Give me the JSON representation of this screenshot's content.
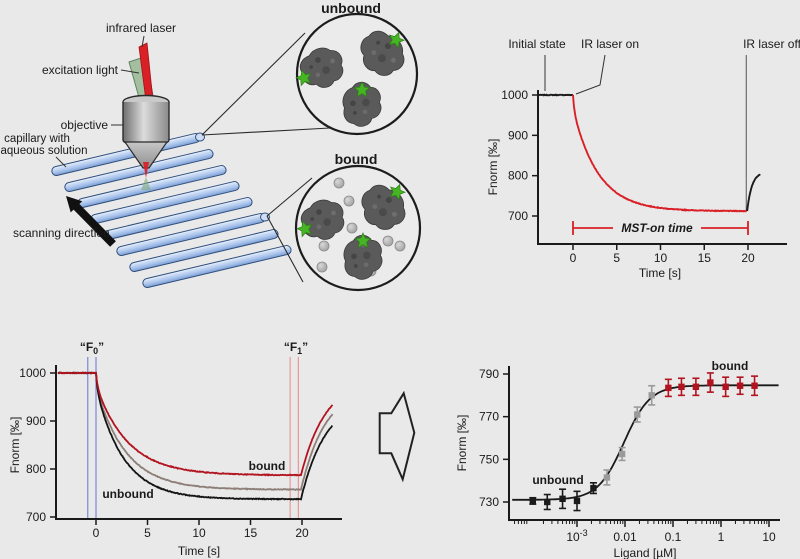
{
  "figure": {
    "background": "#e9e9e9"
  },
  "diagram": {
    "labels": {
      "infrared_laser": "infrared laser",
      "excitation_light": "excitation light",
      "objective": "objective",
      "capillary_line1": "capillary with",
      "capillary_line2": "aqueous solution",
      "scanning_direction": "scanning direction",
      "unbound_title": "unbound",
      "bound_title": "bound"
    },
    "colors": {
      "laser_red": "#d92027",
      "excitation_green": "#a4bfa0",
      "beam_shadow": "#938c7e",
      "capillary_fill": "#aac4ec",
      "capillary_stroke": "#2f4f7c",
      "protein_gray": "#5a5a5a",
      "ligand_gray": "#b0b0b0",
      "star_green": "#46b524",
      "bound_red": "#b2131f",
      "arrow_black": "#111111"
    }
  },
  "chart_data": [
    {
      "id": "mst_time_trace",
      "type": "line",
      "xlabel": "Time [s]",
      "ylabel": "Fnorm [‰]",
      "xticks": [
        0,
        5,
        10,
        15,
        20
      ],
      "yticks": [
        700,
        800,
        900,
        1000
      ],
      "xlim": [
        -4,
        24.5
      ],
      "ylim": [
        655,
        1035
      ],
      "annotations": {
        "initial_state": "Initial state",
        "laser_on": "IR laser on",
        "laser_off": "IR laser off",
        "mst_on": "MST-on time"
      },
      "accent_red": "#d92027",
      "laser_off_t": 19.8,
      "mst_window": [
        0,
        20
      ],
      "series": [
        {
          "name": "initial-fluorescence",
          "color": "#1a1a1a",
          "kind": "flat",
          "t0": -4,
          "t1": 0,
          "y": 1000
        },
        {
          "name": "thermophoresis-decay",
          "color": "#d92027",
          "kind": "decay",
          "t0": 0,
          "t1": 19.9,
          "plateau": 712,
          "amp": 288,
          "ff": 0.12,
          "tf": 0.15,
          "ts": 2.9
        },
        {
          "name": "back-diffusion-recovery",
          "color": "#1a1a1a",
          "kind": "recovery",
          "t0": 19.9,
          "t1": 21.4,
          "y_start": 712,
          "y_inf": 810,
          "tau": 0.55
        }
      ]
    },
    {
      "id": "binding_time_traces",
      "type": "line",
      "xlabel": "Time [s]",
      "ylabel": "Fnorm [‰]",
      "xticks": [
        0,
        5,
        10,
        15,
        20
      ],
      "yticks": [
        700,
        800,
        900,
        1000
      ],
      "xlim": [
        -4,
        23.5
      ],
      "ylim": [
        690,
        1030
      ],
      "annotations": {
        "f0_pre": "“F",
        "f0_sub": "0",
        "f0_post": "”",
        "f1_pre": "“F",
        "f1_sub": "1",
        "f1_post": "”",
        "unbound": "unbound",
        "bound": "bound"
      },
      "f0_color": "#4a5bc4",
      "f0_line_color": "#7a87d6",
      "f1_color": "#b2131f",
      "f1_line_color": "#e59a9a",
      "f0_window": [
        -0.8,
        0
      ],
      "f1_window": [
        18.85,
        19.65
      ],
      "flat_start": -3.7,
      "flat_y": 1000,
      "laser_off": 19.9,
      "t_end": 23,
      "decay": {
        "ff": 0.12,
        "tf": 0.15
      },
      "rec_tau": 2.4,
      "series": [
        {
          "name": "partially-bound-trace",
          "color": "#8d7f78",
          "plateau": 757,
          "ts": 2.9,
          "rec_inf": 975
        },
        {
          "name": "unbound-trace",
          "color": "#141414",
          "plateau": 737,
          "ts": 2.7,
          "rec_inf": 950
        },
        {
          "name": "bound-trace",
          "color": "#b2131f",
          "plateau": 787,
          "ts": 3.1,
          "rec_inf": 990
        }
      ]
    },
    {
      "id": "dose_response",
      "type": "scatter",
      "xscale": "log",
      "xlabel": "Ligand [µM]",
      "ylabel": "Fnorm [‰]",
      "yticks": [
        730,
        750,
        770,
        790
      ],
      "xticks": [
        {
          "v": 0.001,
          "label": "10^-3"
        },
        {
          "v": 0.01,
          "label": "0.01"
        },
        {
          "v": 0.1,
          "label": "0.1"
        },
        {
          "v": 1,
          "label": "1"
        },
        {
          "v": 10,
          "label": "10"
        }
      ],
      "ylim": [
        722,
        795
      ],
      "annotations": {
        "unbound": "unbound",
        "bound": "bound"
      },
      "fit": {
        "bottom": 731,
        "top": 784.7,
        "ec50": 0.0095,
        "hill": 1.6
      },
      "groups": [
        {
          "name": "unbound",
          "color": "#1a1a1a",
          "points": [
            {
              "x": 0.00012,
              "y": 730.5,
              "err": 1.5
            },
            {
              "x": 0.00024,
              "y": 730.0,
              "err": 3.5
            },
            {
              "x": 0.0005,
              "y": 731.5,
              "err": 4.5
            },
            {
              "x": 0.001,
              "y": 730.5,
              "err": 4.5
            },
            {
              "x": 0.0022,
              "y": 736.5,
              "err": 2.5
            }
          ]
        },
        {
          "name": "transition",
          "color": "#9a9a9a",
          "points": [
            {
              "x": 0.0042,
              "y": 741.5,
              "err": 3.5
            },
            {
              "x": 0.0087,
              "y": 752.5,
              "err": 3.0
            },
            {
              "x": 0.018,
              "y": 771.0,
              "err": 3.5
            },
            {
              "x": 0.036,
              "y": 780.0,
              "err": 4.5
            }
          ]
        },
        {
          "name": "bound",
          "color": "#b2131f",
          "points": [
            {
              "x": 0.08,
              "y": 783.5,
              "err": 4.0
            },
            {
              "x": 0.15,
              "y": 784.0,
              "err": 4.0
            },
            {
              "x": 0.3,
              "y": 784.0,
              "err": 4.0
            },
            {
              "x": 0.6,
              "y": 786.0,
              "err": 4.5
            },
            {
              "x": 1.25,
              "y": 784.0,
              "err": 4.5
            },
            {
              "x": 2.5,
              "y": 784.5,
              "err": 4.0
            },
            {
              "x": 5.0,
              "y": 784.5,
              "err": 4.5
            }
          ]
        }
      ]
    }
  ]
}
